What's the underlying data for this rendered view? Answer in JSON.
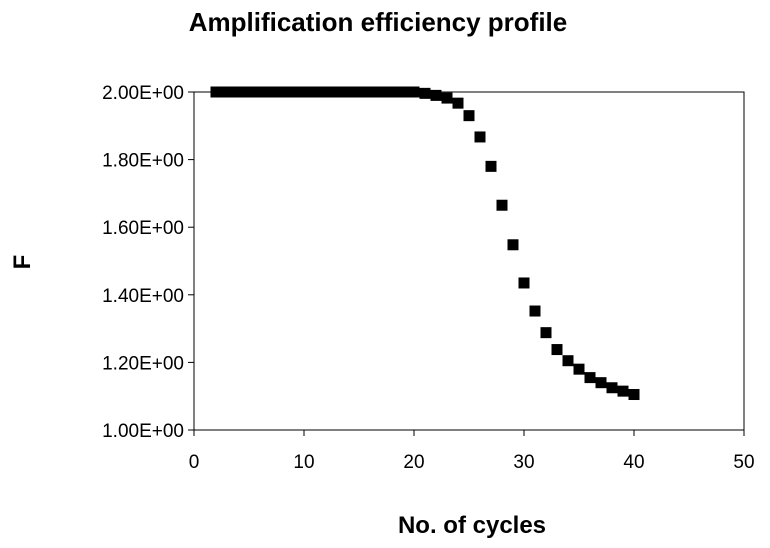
{
  "chart_data": {
    "type": "scatter",
    "title": "Amplification efficiency profile",
    "xlabel": "No. of cycles",
    "ylabel": "F",
    "xlim": [
      0,
      50
    ],
    "ylim": [
      1.0,
      2.0
    ],
    "x_ticks": [
      "0",
      "10",
      "20",
      "30",
      "40",
      "50"
    ],
    "y_ticks": [
      "1.00E+00",
      "1.20E+00",
      "1.40E+00",
      "1.60E+00",
      "1.80E+00",
      "2.00E+00"
    ],
    "grid": false,
    "legend": "none",
    "marker": "square",
    "marker_color": "#000000",
    "series": [
      {
        "x": [
          2,
          3,
          4,
          5,
          6,
          7,
          8,
          9,
          10,
          11,
          12,
          13,
          14,
          15,
          16,
          17,
          18,
          19,
          20,
          21,
          22,
          23,
          24,
          25,
          26,
          27,
          28,
          29,
          30,
          31,
          32,
          33,
          34,
          35,
          36,
          37,
          38,
          39,
          40
        ],
        "y": [
          2.0,
          2.0,
          2.0,
          2.0,
          2.0,
          2.0,
          2.0,
          2.0,
          2.0,
          2.0,
          2.0,
          2.0,
          2.0,
          2.0,
          2.0,
          2.0,
          2.0,
          2.0,
          2.0,
          1.996,
          1.99,
          1.982,
          1.967,
          1.93,
          1.867,
          1.78,
          1.665,
          1.548,
          1.435,
          1.352,
          1.288,
          1.238,
          1.205,
          1.18,
          1.155,
          1.14,
          1.125,
          1.115,
          1.105
        ]
      }
    ]
  }
}
